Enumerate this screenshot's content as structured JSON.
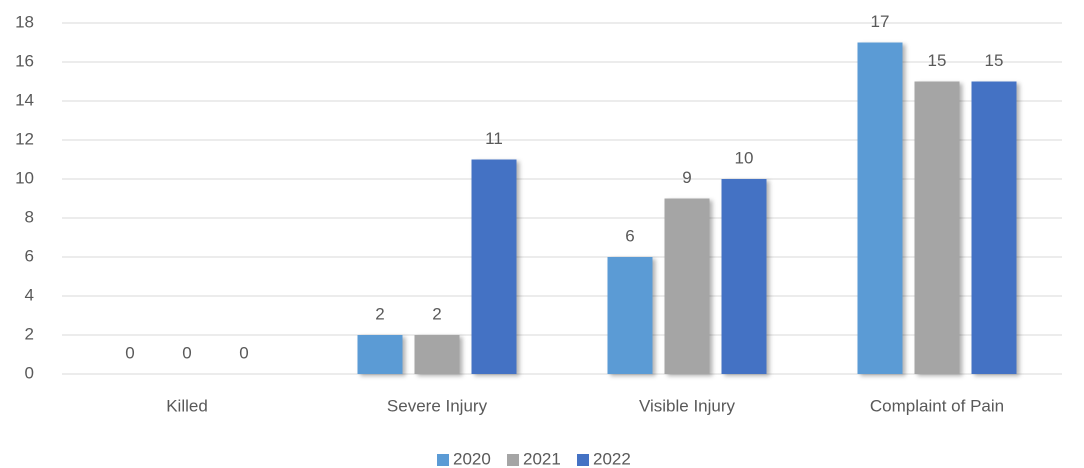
{
  "chart_data": {
    "type": "bar",
    "categories": [
      "Killed",
      "Severe Injury",
      "Visible Injury",
      "Complaint of Pain"
    ],
    "series": [
      {
        "name": "2020",
        "color": "#5b9bd5",
        "values": [
          0,
          2,
          6,
          17
        ]
      },
      {
        "name": "2021",
        "color": "#a5a5a5",
        "values": [
          0,
          2,
          9,
          15
        ]
      },
      {
        "name": "2022",
        "color": "#4472c4",
        "values": [
          0,
          11,
          10,
          15
        ]
      }
    ],
    "ylim": [
      0,
      18
    ],
    "yticks": [
      0,
      2,
      4,
      6,
      8,
      10,
      12,
      14,
      16,
      18
    ],
    "grid": true,
    "legend": "bottom"
  }
}
